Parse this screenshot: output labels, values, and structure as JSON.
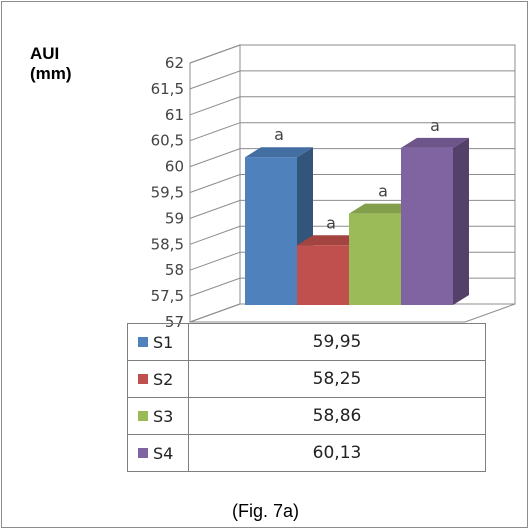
{
  "chart_data": {
    "type": "bar",
    "ylabel_line1": "AUI",
    "ylabel_line2": "(mm)",
    "ylim": [
      57,
      62
    ],
    "yticks": [
      "62",
      "61,5",
      "61",
      "60,5",
      "60",
      "59,5",
      "59",
      "58,5",
      "58",
      "57,5",
      "57"
    ],
    "ytick_values": [
      62,
      61.5,
      61,
      60.5,
      60,
      59.5,
      59,
      58.5,
      58,
      57.5,
      57
    ],
    "series": [
      {
        "name": "S1",
        "value": 59.95,
        "value_label": "59,95",
        "significance": "a",
        "color": "#4f81bd"
      },
      {
        "name": "S2",
        "value": 58.25,
        "value_label": "58,25",
        "significance": "a",
        "color": "#c0504d"
      },
      {
        "name": "S3",
        "value": 58.86,
        "value_label": "58,86",
        "significance": "a",
        "color": "#9bbb59"
      },
      {
        "name": "S4",
        "value": 60.13,
        "value_label": "60,13",
        "significance": "a",
        "color": "#8064a2"
      }
    ],
    "grid": true,
    "legend": "table-below"
  },
  "caption": "(Fig. 7a)"
}
